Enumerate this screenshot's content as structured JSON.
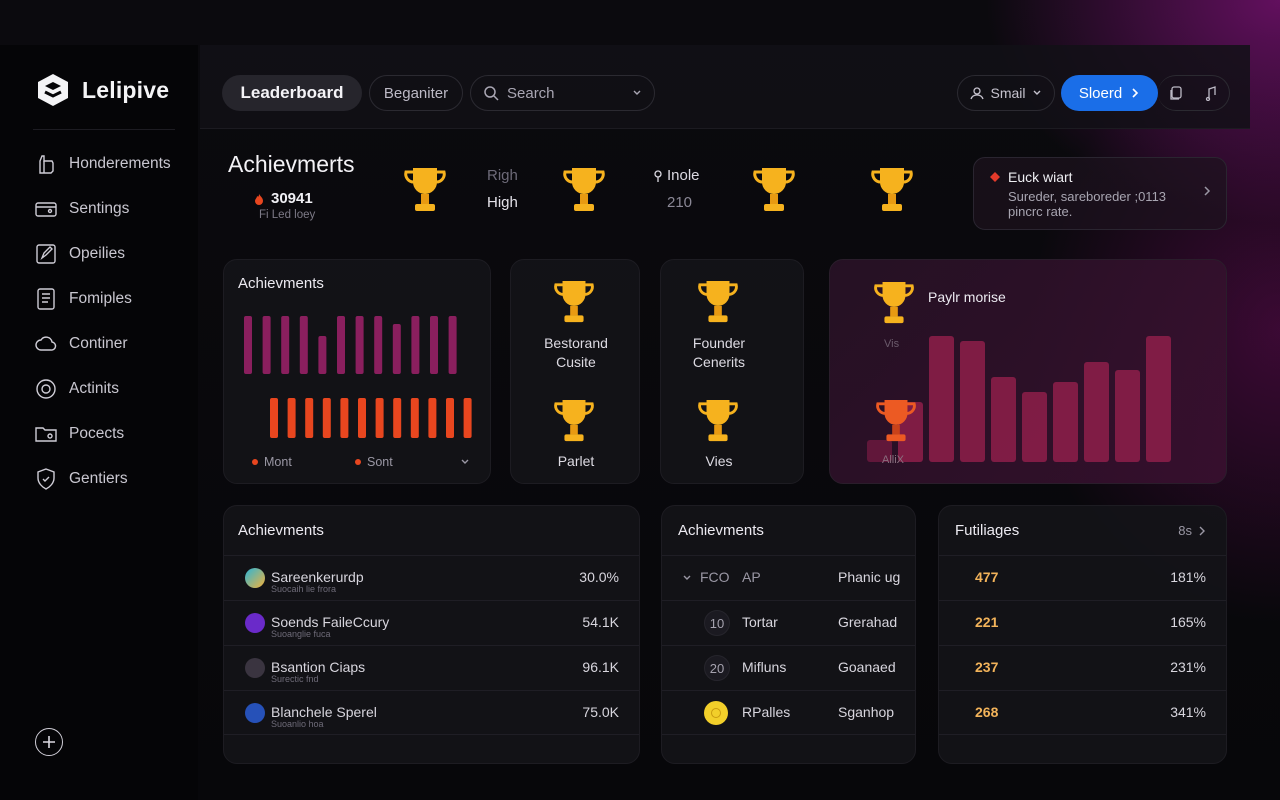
{
  "app": {
    "name": "Lelipive"
  },
  "sidebar": {
    "items": [
      {
        "label": "Honderements",
        "icon": "hand-icon"
      },
      {
        "label": "Sentings",
        "icon": "wallet-icon"
      },
      {
        "label": "Opeilies",
        "icon": "edit-icon"
      },
      {
        "label": "Fomiples",
        "icon": "document-icon"
      },
      {
        "label": "Continer",
        "icon": "cloud-icon"
      },
      {
        "label": "Actinits",
        "icon": "gear-icon"
      },
      {
        "label": "Pocects",
        "icon": "folder-icon"
      },
      {
        "label": "Gentiers",
        "icon": "shield-icon"
      }
    ]
  },
  "topbar": {
    "tab_active": "Leaderboard",
    "tab_secondary": "Beganiter",
    "search_placeholder": "Search",
    "small_dropdown": "Smail",
    "primary_button": "Sloerd"
  },
  "header": {
    "title": "Achievmerts",
    "score": "30941",
    "score_sub": "Fi Led loey",
    "col1_top": "Righ",
    "col1_bottom": "High",
    "col2_top": "Inole",
    "col2_bottom": "210"
  },
  "event": {
    "title": "Euck wiart",
    "description": "Sureder, sareboreder ;0113 pincrc rate."
  },
  "bar_card": {
    "title": "Achievments",
    "legend_a": "Mont",
    "legend_b": "Sont"
  },
  "badges": [
    {
      "label_line1": "Bestorand",
      "label_line2": "Cusite"
    },
    {
      "label_line1": "Founder",
      "label_line2": "Cenerits"
    },
    {
      "label_line1": "Parlet",
      "label_line2": ""
    },
    {
      "label_line1": "Vies",
      "label_line2": ""
    }
  ],
  "chart_card": {
    "title": "Paylr morise",
    "label_a": "Vis",
    "label_b": "AlliX"
  },
  "chart_data": [
    {
      "type": "bar",
      "title": "Achievments",
      "series": [
        {
          "name": "Mont",
          "color": "#8a1f5e",
          "values": [
            58,
            58,
            58,
            58,
            38,
            58,
            58,
            58,
            50,
            58,
            58,
            58
          ]
        },
        {
          "name": "Sont",
          "color": "#e8461f",
          "values": [
            40,
            40,
            40,
            40,
            40,
            40,
            40,
            40,
            40,
            40,
            40,
            40
          ]
        }
      ]
    },
    {
      "type": "bar",
      "title": "Paylr morise",
      "values": [
        22,
        60,
        126,
        121,
        85,
        70,
        80,
        100,
        92,
        126
      ],
      "color": "#8e1e4a"
    }
  ],
  "table1": {
    "title": "Achievments",
    "rows": [
      {
        "name": "Sareenkerurdp",
        "sub": "Suocaih lie frora",
        "value": "30.0%",
        "avatar_color": "#2bb5d8"
      },
      {
        "name": "Soends FaileCcury",
        "sub": "Suoanglie fuca",
        "value": "54.1K",
        "avatar_color": "#6a2ac9"
      },
      {
        "name": "Bsantion Ciaps",
        "sub": "Surectic fnd",
        "value": "96.1K",
        "avatar_color": "#3a3440"
      },
      {
        "name": "Blanchele Sperel",
        "sub": "Suoanlio hoa",
        "value": "75.0K",
        "avatar_color": "#2651b8"
      }
    ]
  },
  "table2": {
    "title": "Achievments",
    "header": {
      "col_a": "FCO",
      "col_b": "AP",
      "col_c": "Phanic ug"
    },
    "rows": [
      {
        "rank": "10",
        "name": "Tortar",
        "status": "Grerahad"
      },
      {
        "rank": "20",
        "name": "Mifluns",
        "status": "Goanaed"
      },
      {
        "rank": "",
        "name": "RPalles",
        "status": "Sganhop"
      }
    ]
  },
  "table3": {
    "title": "Futiliages",
    "header_right": "8s",
    "rows": [
      {
        "value": "477",
        "pct": "181%"
      },
      {
        "value": "221",
        "pct": "165%"
      },
      {
        "value": "237",
        "pct": "231%"
      },
      {
        "value": "268",
        "pct": "341%"
      }
    ]
  }
}
